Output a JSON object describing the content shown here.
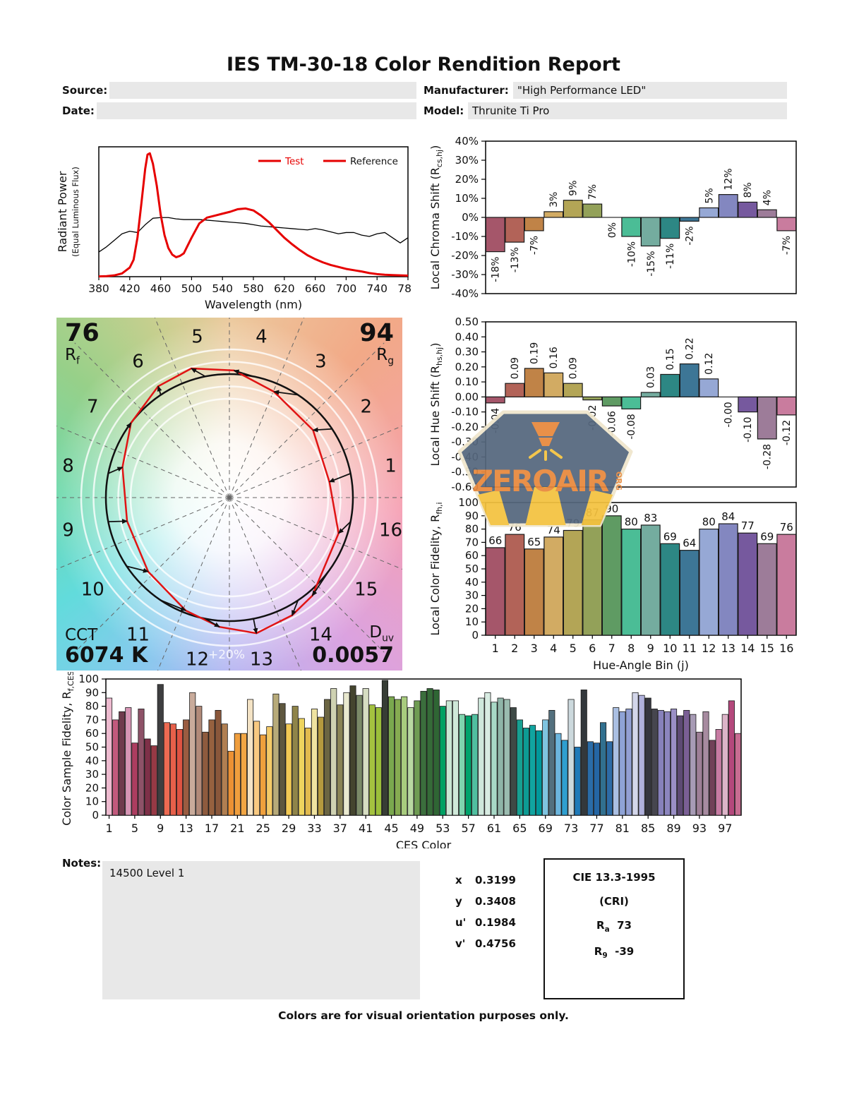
{
  "header": {
    "title": "IES TM-30-18 Color Rendition Report",
    "source_label": "Source:",
    "source_value": "",
    "date_label": "Date:",
    "date_value": "",
    "manufacturer_label": "Manufacturer:",
    "manufacturer_value": "\"High Performance LED\"",
    "model_label": "Model:",
    "model_value": "Thrunite Ti Pro"
  },
  "watermark": {
    "text": "ZEROAIR",
    "suffix": "ORG"
  },
  "cvg": {
    "rf_value": "76",
    "rf_label": "R",
    "rf_sub": "f",
    "rg_value": "94",
    "rg_label": "R",
    "rg_sub": "g",
    "cct_label": "CCT",
    "cct_value": "6074 K",
    "duv_label": "D",
    "duv_sub": "uv",
    "duv_value": "0.0057",
    "ring_label": "+20%",
    "bin_labels": [
      "1",
      "2",
      "3",
      "4",
      "5",
      "6",
      "7",
      "8",
      "9",
      "10",
      "11",
      "12",
      "13",
      "14",
      "15",
      "16"
    ]
  },
  "hue_bin_colors": [
    "#a5566a",
    "#b26358",
    "#c08347",
    "#d2ab63",
    "#b3a556",
    "#93a159",
    "#5f9b63",
    "#4bbd96",
    "#74ac9f",
    "#2d8784",
    "#3d7696",
    "#96a8d5",
    "#8387c0",
    "#76599e",
    "#9d7c99",
    "#c97c9e"
  ],
  "chart_data": [
    {
      "id": "spd",
      "type": "line",
      "xlabel": "Wavelength (nm)",
      "ylabel": "Radiant Power",
      "ylabel2": "(Equal Luminous Flux)",
      "xlim": [
        380,
        780
      ],
      "ylim": [
        0,
        1
      ],
      "xticks": [
        380,
        420,
        460,
        500,
        540,
        580,
        620,
        660,
        700,
        740,
        780
      ],
      "legend": [
        {
          "label": "Test",
          "line_color": "#e60000",
          "text_color": "#e60000"
        },
        {
          "label": "Reference",
          "line_color": "#e60000",
          "text_color": "#111111"
        }
      ],
      "series": [
        {
          "name": "Test",
          "color": "#e60000",
          "width": 3,
          "x": [
            380,
            390,
            400,
            410,
            420,
            425,
            430,
            435,
            440,
            443,
            446,
            450,
            455,
            460,
            465,
            470,
            475,
            480,
            485,
            490,
            495,
            500,
            510,
            520,
            530,
            540,
            550,
            560,
            570,
            580,
            590,
            600,
            610,
            620,
            630,
            640,
            650,
            660,
            670,
            680,
            690,
            700,
            710,
            720,
            730,
            740,
            750,
            760,
            770,
            780
          ],
          "y": [
            0.002,
            0.004,
            0.01,
            0.025,
            0.07,
            0.13,
            0.3,
            0.56,
            0.83,
            0.94,
            0.95,
            0.87,
            0.7,
            0.48,
            0.32,
            0.22,
            0.17,
            0.15,
            0.16,
            0.18,
            0.24,
            0.3,
            0.41,
            0.455,
            0.47,
            0.485,
            0.5,
            0.52,
            0.525,
            0.51,
            0.47,
            0.42,
            0.36,
            0.3,
            0.25,
            0.205,
            0.165,
            0.135,
            0.11,
            0.09,
            0.075,
            0.06,
            0.05,
            0.04,
            0.028,
            0.02,
            0.015,
            0.012,
            0.01,
            0.008
          ]
        },
        {
          "name": "Reference",
          "color": "#000000",
          "width": 1.3,
          "x": [
            380,
            390,
            400,
            410,
            420,
            430,
            440,
            450,
            460,
            470,
            480,
            490,
            500,
            510,
            520,
            530,
            540,
            550,
            560,
            570,
            580,
            590,
            600,
            610,
            620,
            630,
            640,
            650,
            660,
            670,
            680,
            690,
            700,
            710,
            720,
            730,
            740,
            750,
            760,
            770,
            780
          ],
          "y": [
            0.19,
            0.23,
            0.28,
            0.33,
            0.35,
            0.34,
            0.4,
            0.45,
            0.455,
            0.455,
            0.445,
            0.44,
            0.44,
            0.44,
            0.435,
            0.43,
            0.425,
            0.42,
            0.415,
            0.41,
            0.4,
            0.39,
            0.385,
            0.38,
            0.375,
            0.37,
            0.365,
            0.36,
            0.37,
            0.36,
            0.345,
            0.33,
            0.34,
            0.34,
            0.32,
            0.31,
            0.33,
            0.34,
            0.3,
            0.26,
            0.3
          ]
        }
      ]
    },
    {
      "id": "chroma",
      "type": "bar",
      "ylabel_main": "Local Chroma Shift (R",
      "ylabel_sub": "cs,hj",
      "ylabel_end": ")",
      "ylim": [
        -40,
        40
      ],
      "ytick_values": [
        40,
        30,
        20,
        10,
        0,
        -10,
        -20,
        -30,
        -40
      ],
      "ytick_labels": [
        "40%",
        "30%",
        "20%",
        "10%",
        "0%",
        "-10%",
        "-20%",
        "-30%",
        "-40%"
      ],
      "values": [
        -18,
        -13,
        -7,
        3,
        9,
        7,
        0,
        -10,
        -15,
        -11,
        -2,
        5,
        12,
        8,
        4,
        -7
      ],
      "labels": [
        "-18%",
        "-13%",
        "-7%",
        "3%",
        "9%",
        "7%",
        "0%",
        "-10%",
        "-15%",
        "-11%",
        "-2%",
        "5%",
        "12%",
        "8%",
        "4%",
        "-7%"
      ]
    },
    {
      "id": "hue",
      "type": "bar",
      "ylabel_main": "Local Hue Shift (R",
      "ylabel_sub": "hs,hj",
      "ylabel_end": ")",
      "ylim": [
        -0.6,
        0.5
      ],
      "ytick_values": [
        0.5,
        0.4,
        0.3,
        0.2,
        0.1,
        0,
        -0.1,
        -0.2,
        -0.3,
        -0.4,
        -0.5,
        -0.6
      ],
      "ytick_labels": [
        "0.50",
        "0.40",
        "0.30",
        "0.20",
        "0.10",
        "0.00",
        "-0.10",
        "-0.20",
        "-0.30",
        "-0.40",
        "-0.50",
        "-0.60"
      ],
      "values": [
        -0.04,
        0.09,
        0.19,
        0.16,
        0.09,
        -0.02,
        -0.06,
        -0.08,
        0.03,
        0.15,
        0.22,
        0.12,
        0,
        -0.1,
        -0.28,
        -0.12
      ],
      "labels": [
        "-0.04",
        "0.09",
        "0.19",
        "0.16",
        "0.09",
        "-0.02",
        "-0.06",
        "-0.08",
        "0.03",
        "0.15",
        "0.22",
        "0.12",
        "-0.00",
        "-0.10",
        "-0.28",
        "-0.12"
      ]
    },
    {
      "id": "fidelity",
      "type": "bar",
      "xlabel": "Hue-Angle Bin (j)",
      "ylabel_main": "Local Color Fidelity, R",
      "ylabel_sub": "fh,i",
      "ylabel_end": "",
      "ylim": [
        0,
        100
      ],
      "ytick_values": [
        100,
        90,
        80,
        70,
        60,
        50,
        40,
        30,
        20,
        10,
        0
      ],
      "ytick_labels": [
        "100",
        "90",
        "80",
        "70",
        "60",
        "50",
        "40",
        "30",
        "20",
        "10",
        "0"
      ],
      "categories": [
        "1",
        "2",
        "3",
        "4",
        "5",
        "6",
        "7",
        "8",
        "9",
        "10",
        "11",
        "12",
        "13",
        "14",
        "15",
        "16"
      ],
      "values": [
        66,
        76,
        65,
        74,
        79,
        87,
        90,
        80,
        83,
        69,
        64,
        80,
        84,
        77,
        69,
        76
      ],
      "labels": [
        "66",
        "76",
        "65",
        "74",
        "79",
        "87",
        "90",
        "80",
        "83",
        "69",
        "64",
        "80",
        "84",
        "77",
        "69",
        "76"
      ]
    },
    {
      "id": "ces",
      "type": "bar",
      "xlabel": "CES Color",
      "ylabel_main": "Color Sample Fidelity, R",
      "ylabel_sub": "f,CESi",
      "ylabel_end": "",
      "ylim": [
        0,
        100
      ],
      "ytick_values": [
        100,
        90,
        80,
        70,
        60,
        50,
        40,
        30,
        20,
        10,
        0
      ],
      "ytick_labels": [
        "100",
        "90",
        "80",
        "70",
        "60",
        "50",
        "40",
        "30",
        "20",
        "10",
        "0"
      ],
      "xtick_values": [
        1,
        5,
        9,
        13,
        17,
        21,
        25,
        29,
        33,
        37,
        41,
        45,
        49,
        53,
        57,
        61,
        65,
        69,
        73,
        77,
        81,
        85,
        89,
        93,
        97
      ],
      "values": [
        86,
        70,
        76,
        79,
        53,
        78,
        56,
        51,
        96,
        68,
        67,
        63,
        70,
        90,
        80,
        61,
        70,
        77,
        67,
        47,
        60,
        60,
        85,
        69,
        59,
        65,
        89,
        82,
        67,
        80,
        71,
        64,
        78,
        72,
        85,
        93,
        81,
        90,
        95,
        88,
        93,
        81,
        79,
        99,
        87,
        85,
        87,
        79,
        84,
        91,
        93,
        92,
        80,
        84,
        84,
        74,
        73,
        74,
        86,
        90,
        83,
        86,
        85,
        79,
        70,
        64,
        66,
        62,
        70,
        77,
        60,
        55,
        85,
        50,
        92,
        54,
        53,
        68,
        54,
        79,
        76,
        78,
        90,
        88,
        86,
        78,
        77,
        76,
        78,
        73,
        77,
        74,
        61,
        76,
        55,
        63,
        74,
        84,
        60
      ],
      "colors": [
        "#eebbd0",
        "#c25a7d",
        "#6f3b4d",
        "#d795b5",
        "#ad3d60",
        "#8e5268",
        "#7e3048",
        "#973945",
        "#3e3e40",
        "#ed6a52",
        "#e7604a",
        "#de5342",
        "#9a5c41",
        "#c9ab9b",
        "#b28a79",
        "#8e5b3e",
        "#96613f",
        "#8a573b",
        "#b07f52",
        "#ec9133",
        "#f09e3d",
        "#f2a644",
        "#f4e3c5",
        "#f8c981",
        "#f0a03c",
        "#f4ca68",
        "#b7aa79",
        "#5e573f",
        "#f2c954",
        "#8f8449",
        "#eed45e",
        "#e2bb4e",
        "#efe3a0",
        "#b59a3e",
        "#6b6542",
        "#cfd2b2",
        "#8a8455",
        "#e9e9cf",
        "#44452f",
        "#7a8a68",
        "#d6ddc2",
        "#a4c23f",
        "#9bbf3a",
        "#373d35",
        "#7aa84e",
        "#86ab51",
        "#a8cc7e",
        "#b9d9a2",
        "#6f9c53",
        "#3b6e3d",
        "#356b38",
        "#2f6634",
        "#00a063",
        "#c9e6d4",
        "#cfe9d9",
        "#7fd4ae",
        "#00a36c",
        "#50bfa0",
        "#cfe8dc",
        "#d8ece2",
        "#a8d8c6",
        "#8fb5a8",
        "#9bbcb0",
        "#3f4a46",
        "#17a092",
        "#0d9b94",
        "#11a4a0",
        "#00989b",
        "#7fc4e0",
        "#53707e",
        "#6cb5dd",
        "#2f9fd0",
        "#ccd9dd",
        "#1f7ab8",
        "#33383c",
        "#2a6ca8",
        "#2566a4",
        "#31708f",
        "#2d6ba6",
        "#aabfe2",
        "#8fa3d6",
        "#93a0d4",
        "#d3d6ea",
        "#b0b1dc",
        "#35363e",
        "#46464e",
        "#8781bb",
        "#8c85be",
        "#9a8fc5",
        "#5d4a74",
        "#7a5f95",
        "#a79bb5",
        "#9e7f96",
        "#a78ba0",
        "#714158",
        "#c77ba3",
        "#dcb4c8",
        "#b4487c",
        "#c86d92"
      ]
    }
  ],
  "notes": {
    "label": "Notes:",
    "value": "14500 Level 1"
  },
  "chromaticity": {
    "rows": [
      {
        "label": "x",
        "value": "0.3199"
      },
      {
        "label": "y",
        "value": "0.3408"
      },
      {
        "label": "u'",
        "value": "0.1984"
      },
      {
        "label": "v'",
        "value": "0.4756"
      }
    ]
  },
  "cri_box": {
    "title": "CIE 13.3-1995",
    "subtitle": "(CRI)",
    "ra_label": "R",
    "ra_sub": "a",
    "ra_value": "73",
    "r9_label": "R",
    "r9_sub": "9",
    "r9_value": "-39"
  },
  "footer": "Colors are for visual orientation purposes only."
}
